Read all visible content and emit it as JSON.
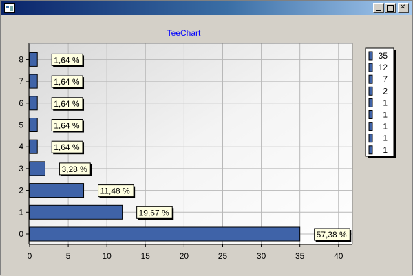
{
  "window": {
    "title": ""
  },
  "colors": {
    "bar": "#3f63a8",
    "label_bg": "#ffffe1",
    "title": "#0000ff",
    "grid": "#b8b8b8"
  },
  "chart_data": {
    "type": "bar",
    "orientation": "horizontal",
    "title": "TeeChart",
    "xlabel": "",
    "ylabel": "",
    "categories": [
      "0",
      "1",
      "2",
      "3",
      "4",
      "5",
      "6",
      "7",
      "8"
    ],
    "values": [
      35,
      12,
      7,
      2,
      1,
      1,
      1,
      1,
      1
    ],
    "data_labels": [
      "57,38 %",
      "19,67 %",
      "11,48 %",
      "3,28 %",
      "1,64 %",
      "1,64 %",
      "1,64 %",
      "1,64 %",
      "1,64 %"
    ],
    "xlim": [
      0,
      41
    ],
    "xticks": [
      0,
      5,
      10,
      15,
      20,
      25,
      30,
      35,
      40
    ],
    "grid": true,
    "legend": {
      "position": "right",
      "entries": [
        "35",
        "12",
        "7",
        "2",
        "1",
        "1",
        "1",
        "1",
        "1"
      ]
    }
  }
}
